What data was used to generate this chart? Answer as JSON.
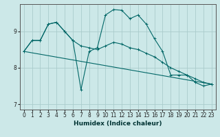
{
  "xlabel": "Humidex (Indice chaleur)",
  "background_color": "#cce8e8",
  "grid_color": "#aacccc",
  "line_color": "#006666",
  "xlim": [
    -0.5,
    23.5
  ],
  "ylim": [
    6.85,
    9.75
  ],
  "yticks": [
    7,
    8,
    9
  ],
  "xticks": [
    0,
    1,
    2,
    3,
    4,
    5,
    6,
    7,
    8,
    9,
    10,
    11,
    12,
    13,
    14,
    15,
    16,
    17,
    18,
    19,
    20,
    21,
    22,
    23
  ],
  "series": [
    {
      "x": [
        0,
        1,
        2,
        3,
        4,
        5,
        6,
        7,
        8,
        9,
        10,
        11,
        12,
        13,
        14,
        15,
        16,
        17,
        18,
        19,
        20,
        21,
        22,
        23
      ],
      "y": [
        8.45,
        8.75,
        8.75,
        9.2,
        9.25,
        9.0,
        8.75,
        7.4,
        8.45,
        8.55,
        9.45,
        9.6,
        9.58,
        9.35,
        9.45,
        9.2,
        8.8,
        8.45,
        7.8,
        7.8,
        7.8,
        7.6,
        7.5,
        7.55
      ]
    },
    {
      "x": [
        0,
        1,
        2,
        3,
        4,
        5,
        6,
        7,
        8,
        9,
        10,
        11,
        12,
        13,
        14,
        15,
        16,
        17,
        18,
        19,
        20,
        21,
        22,
        23
      ],
      "y": [
        8.45,
        8.75,
        8.75,
        9.2,
        9.25,
        9.0,
        8.75,
        8.6,
        8.55,
        8.5,
        8.6,
        8.7,
        8.65,
        8.55,
        8.5,
        8.4,
        8.3,
        8.15,
        8.0,
        7.9,
        7.8,
        7.7,
        7.6,
        7.55
      ]
    },
    {
      "x": [
        0,
        23
      ],
      "y": [
        8.45,
        7.55
      ]
    }
  ]
}
